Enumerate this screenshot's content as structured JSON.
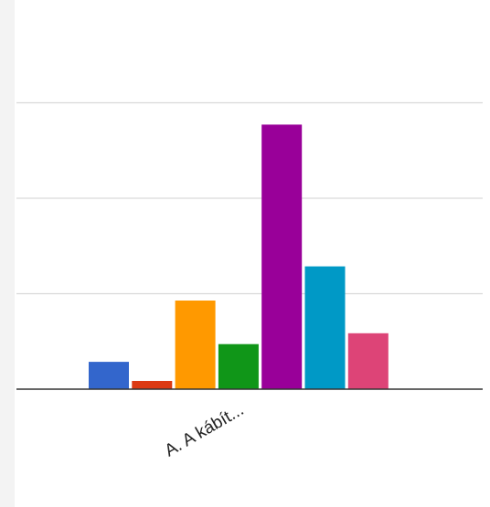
{
  "chart_data": {
    "type": "bar",
    "categories": [
      "A. A kábít..."
    ],
    "series": [
      {
        "values": [
          2
        ],
        "color": "#3366cc"
      },
      {
        "values": [
          0.6
        ],
        "color": "#dc3912"
      },
      {
        "values": [
          6.5
        ],
        "color": "#ff9900"
      },
      {
        "values": [
          3.3
        ],
        "color": "#109618"
      },
      {
        "values": [
          19.4
        ],
        "color": "#990099"
      },
      {
        "values": [
          9
        ],
        "color": "#0099c6"
      },
      {
        "values": [
          4.1
        ],
        "color": "#dd4477"
      }
    ],
    "ylim": [
      0,
      21.4
    ],
    "yticks": [
      0,
      7,
      14,
      21
    ],
    "grid": true,
    "title": "",
    "xlabel": "",
    "ylabel": ""
  }
}
